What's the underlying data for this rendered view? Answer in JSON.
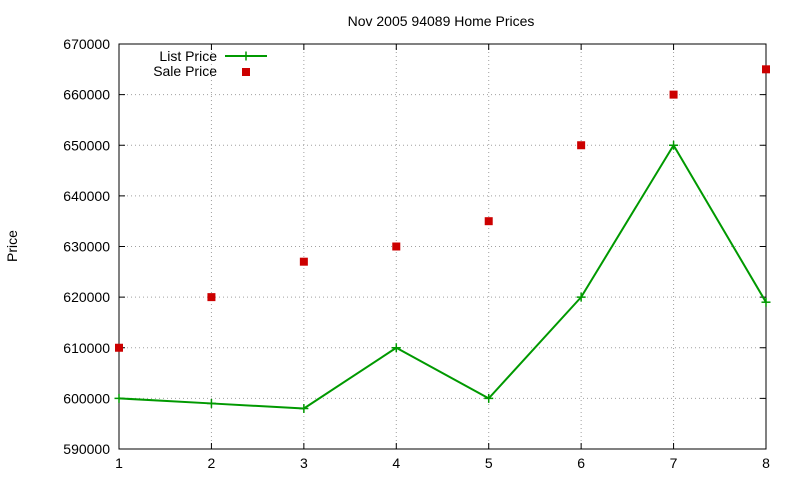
{
  "chart_data": {
    "type": "line",
    "title": "Nov 2005 94089 Home Prices",
    "xlabel": "",
    "ylabel": "Price",
    "x": [
      1,
      2,
      3,
      4,
      5,
      6,
      7,
      8
    ],
    "xlim": [
      1,
      8
    ],
    "ylim": [
      590000,
      670000
    ],
    "xticks": [
      1,
      2,
      3,
      4,
      5,
      6,
      7,
      8
    ],
    "yticks": [
      590000,
      600000,
      610000,
      620000,
      630000,
      640000,
      650000,
      660000,
      670000
    ],
    "grid": true,
    "legend_position": "top-left",
    "series": [
      {
        "name": "List Price",
        "style": "linespoints",
        "marker": "plus",
        "color": "#009900",
        "values": [
          600000,
          599000,
          598000,
          610000,
          600000,
          620000,
          650000,
          619000
        ]
      },
      {
        "name": "Sale Price",
        "style": "points",
        "marker": "square",
        "color": "#cc0000",
        "values": [
          610000,
          620000,
          627000,
          630000,
          635000,
          650000,
          660000,
          665000
        ]
      }
    ]
  }
}
